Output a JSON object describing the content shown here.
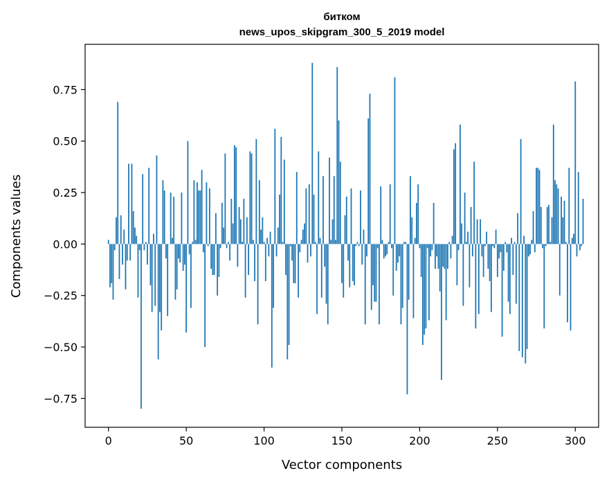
{
  "chart_data": {
    "type": "bar",
    "title": "битком",
    "subtitle": "news_upos_skipgram_300_5_2019 model",
    "xlabel": "Vector components",
    "ylabel": "Components values",
    "xlim": [
      -15,
      315
    ],
    "ylim": [
      -0.89,
      0.97
    ],
    "xticks": [
      0,
      50,
      100,
      150,
      200,
      250,
      300
    ],
    "xtick_labels": [
      "0",
      "50",
      "100",
      "150",
      "200",
      "250",
      "300"
    ],
    "yticks": [
      -0.75,
      -0.5,
      -0.25,
      0.0,
      0.25,
      0.5,
      0.75
    ],
    "ytick_labels": [
      "−0.75",
      "−0.50",
      "−0.25",
      "0.00",
      "0.25",
      "0.50",
      "0.75"
    ],
    "bar_color": "#1f77b4",
    "grid": false,
    "series": [
      {
        "name": "битком",
        "values": [
          0.02,
          -0.21,
          -0.19,
          -0.27,
          -0.03,
          0.13,
          0.69,
          -0.17,
          0.14,
          -0.1,
          0.07,
          -0.22,
          -0.08,
          0.39,
          -0.08,
          0.39,
          0.16,
          0.08,
          0.04,
          -0.26,
          -0.03,
          -0.8,
          0.34,
          -0.03,
          0.01,
          -0.1,
          0.37,
          -0.2,
          -0.33,
          0.05,
          -0.3,
          0.43,
          -0.56,
          -0.33,
          -0.42,
          0.31,
          0.26,
          -0.07,
          -0.35,
          0.0,
          0.25,
          0.03,
          0.23,
          -0.27,
          -0.22,
          -0.07,
          -0.09,
          0.25,
          -0.13,
          -0.1,
          -0.43,
          0.5,
          -0.05,
          -0.31,
          0.01,
          0.31,
          0.02,
          0.3,
          0.26,
          0.26,
          0.36,
          -0.04,
          -0.5,
          0.3,
          -0.01,
          0.27,
          -0.12,
          -0.15,
          -0.15,
          0.15,
          -0.25,
          -0.16,
          -0.02,
          0.2,
          0.08,
          0.44,
          -0.02,
          0.01,
          -0.08,
          0.22,
          0.1,
          0.48,
          0.47,
          -0.11,
          0.18,
          0.12,
          0.01,
          0.22,
          -0.26,
          0.13,
          -0.15,
          0.45,
          0.44,
          0.02,
          -0.18,
          0.51,
          -0.39,
          0.31,
          0.07,
          0.13,
          0.01,
          -0.18,
          0.03,
          -0.06,
          0.06,
          -0.6,
          -0.31,
          0.56,
          -0.06,
          0.08,
          0.24,
          0.52,
          0.01,
          0.41,
          -0.15,
          -0.56,
          -0.49,
          -0.01,
          -0.08,
          -0.19,
          -0.19,
          0.35,
          -0.26,
          -0.04,
          0.02,
          0.07,
          0.1,
          0.27,
          -0.09,
          0.29,
          -0.06,
          0.88,
          0.24,
          0.01,
          -0.34,
          0.45,
          0.03,
          -0.26,
          0.33,
          -0.11,
          -0.29,
          -0.39,
          0.42,
          0.02,
          0.12,
          0.33,
          0.02,
          0.86,
          0.6,
          0.4,
          -0.19,
          -0.26,
          0.14,
          0.23,
          -0.08,
          -0.21,
          0.27,
          -0.18,
          -0.2,
          -0.01,
          0.01,
          -0.01,
          0.26,
          -0.1,
          0.07,
          -0.39,
          -0.06,
          0.61,
          0.73,
          -0.32,
          -0.2,
          -0.28,
          -0.28,
          -0.02,
          -0.39,
          0.28,
          0.02,
          -0.07,
          -0.06,
          -0.05,
          0.01,
          0.29,
          -0.02,
          -0.25,
          0.81,
          -0.13,
          -0.09,
          -0.06,
          -0.39,
          -0.31,
          0.01,
          0.01,
          -0.73,
          -0.27,
          0.33,
          0.13,
          -0.36,
          0.03,
          0.2,
          0.29,
          -0.02,
          -0.16,
          -0.49,
          -0.44,
          -0.41,
          -0.02,
          -0.37,
          -0.06,
          -0.03,
          0.2,
          -0.12,
          -0.06,
          -0.12,
          -0.23,
          -0.66,
          -0.11,
          -0.12,
          -0.37,
          -0.12,
          0.01,
          -0.07,
          0.04,
          0.46,
          0.49,
          -0.2,
          -0.03,
          0.58,
          0.1,
          -0.3,
          0.25,
          0.01,
          0.06,
          -0.21,
          0.18,
          -0.06,
          0.4,
          -0.41,
          0.12,
          -0.34,
          0.12,
          -0.06,
          -0.16,
          -0.01,
          0.06,
          -0.12,
          -0.18,
          -0.33,
          -0.01,
          -0.02,
          0.07,
          -0.16,
          -0.07,
          -0.04,
          -0.45,
          -0.13,
          0.01,
          -0.04,
          -0.28,
          -0.34,
          0.03,
          -0.15,
          0.01,
          -0.29,
          0.15,
          -0.52,
          0.51,
          -0.55,
          0.04,
          -0.58,
          -0.51,
          -0.06,
          -0.05,
          0.02,
          0.16,
          -0.04,
          0.37,
          0.37,
          0.36,
          0.18,
          -0.02,
          -0.41,
          -0.01,
          0.18,
          0.19,
          0.01,
          0.13,
          0.58,
          0.31,
          0.29,
          0.27,
          -0.25,
          0.23,
          0.13,
          0.21,
          0.01,
          -0.38,
          0.37,
          -0.42,
          0.03,
          0.05,
          0.79,
          -0.06,
          0.35,
          -0.03,
          -0.01,
          0.22
        ]
      }
    ]
  }
}
